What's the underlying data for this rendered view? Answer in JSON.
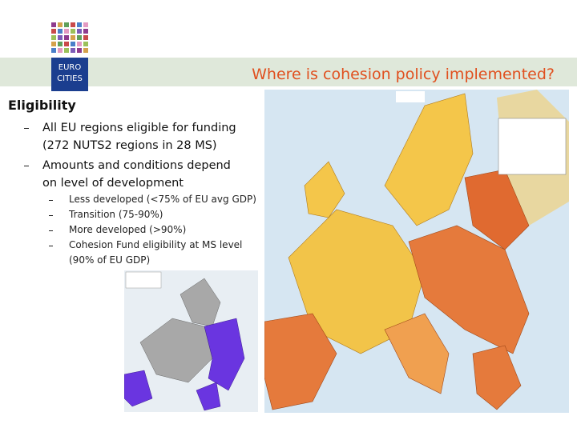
{
  "logo": {
    "line1": "EURO",
    "line2": "CITIES"
  },
  "header": {
    "title": "Where is cohesion policy implemented?"
  },
  "section": {
    "heading": "Eligibility",
    "bullets": [
      {
        "lines": [
          "All EU regions eligible for funding",
          "(272 NUTS2 regions in 28 MS)"
        ]
      },
      {
        "lines": [
          "Amounts and conditions depend",
          "on level of development"
        ]
      }
    ],
    "sub_bullets": [
      {
        "lines": [
          "Less developed (<75% of EU avg GDP)"
        ]
      },
      {
        "lines": [
          "Transition (75-90%)"
        ]
      },
      {
        "lines": [
          "More developed (>90%)"
        ]
      },
      {
        "lines": [
          "Cohesion Fund eligibility at MS level",
          "(90% of EU GDP)"
        ]
      }
    ]
  }
}
